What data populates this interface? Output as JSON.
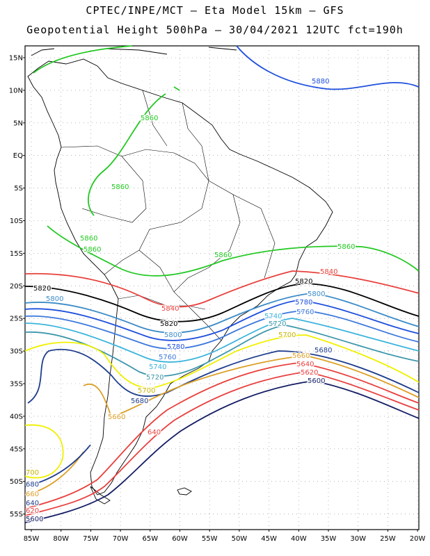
{
  "header": {
    "line1": "CPTEC/INPE/MCT –  Eta Model 15km – GFS",
    "line2": "Geopotential Height 500hPa – 30/04/2021 12UTC fct=190h"
  },
  "axes": {
    "lat_ticks": [
      "15N",
      "10N",
      "5N",
      "EQ",
      "5S",
      "10S",
      "15S",
      "20S",
      "25S",
      "30S",
      "35S",
      "40S",
      "45S",
      "50S",
      "55S"
    ],
    "lon_ticks": [
      "85W",
      "80W",
      "75W",
      "70W",
      "65W",
      "60W",
      "55W",
      "50W",
      "45W",
      "40W",
      "35W",
      "30W",
      "25W",
      "20W"
    ]
  },
  "colors": {
    "c5860": "#22c822",
    "c5840": "#e8403c",
    "c5820": "#000000",
    "c5800": "#3c8cc8",
    "c5780": "#1e50dc",
    "c5760": "#3c78dc",
    "c5740": "#3cb4dc",
    "c5720": "#3c96aa",
    "c5700": "#f0f000",
    "c5680": "#1e3c8c",
    "c5660": "#dca028",
    "c5620": "#e84040",
    "c5600": "#141e64",
    "land": "#000000"
  },
  "contour_labels": {
    "l5880": "5880",
    "l5860": "5860",
    "l5840": "5840",
    "l5820": "5820",
    "l5800": "5800",
    "l5780": "5780",
    "l5760": "5760",
    "l5740": "5740",
    "l5720": "5720",
    "l5700": "5700",
    "l5680": "5680",
    "l5660": "5660",
    "l5640": "5640",
    "l5620": "5620",
    "l5600": "5600",
    "l5640b": "640",
    "l5680e": "680",
    "l5700e": "700",
    "l5660e": "660",
    "l5620e": "620",
    "l5640e": "640",
    "l5600e": "5600"
  }
}
